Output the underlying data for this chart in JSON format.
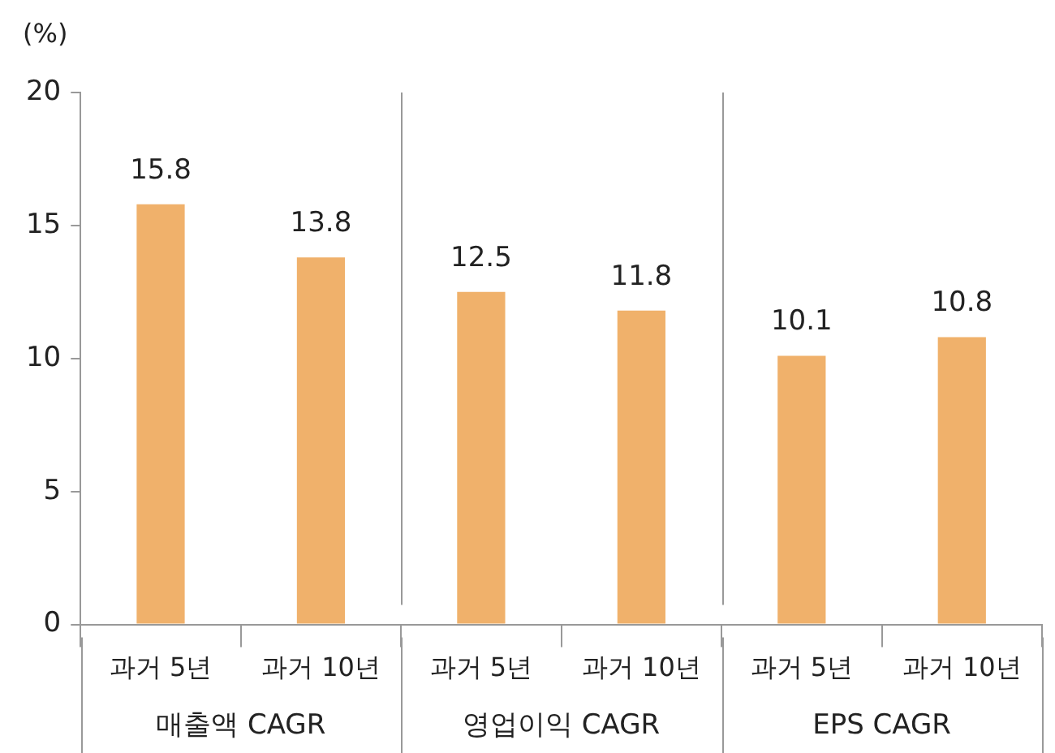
{
  "chart_data": {
    "type": "bar",
    "ylabel": "(%)",
    "categories": [
      "과거 5년",
      "과거 10년",
      "과거 5년",
      "과거 10년",
      "과거 5년",
      "과거 10년"
    ],
    "values": [
      15.8,
      13.8,
      12.5,
      11.8,
      10.1,
      10.8
    ],
    "color": "#f0b16b",
    "ylim": [
      0,
      20
    ],
    "yticks": [
      0,
      5,
      10,
      15,
      20
    ],
    "grid": false,
    "legend": false,
    "data_labels": true,
    "annotations": [
      "매출액 CAGR",
      "영업이익 CAGR",
      "EPS CAGR"
    ]
  }
}
